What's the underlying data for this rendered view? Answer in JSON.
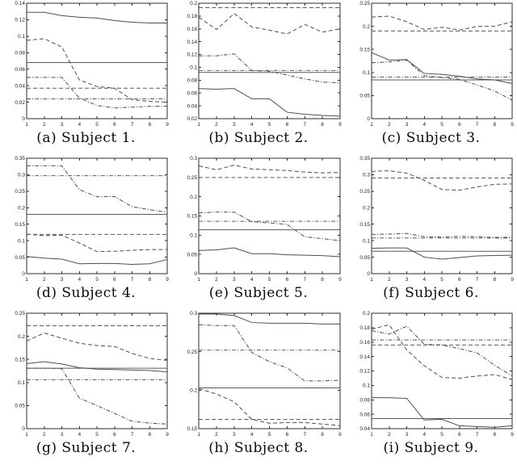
{
  "figure": {
    "background": "#ffffff",
    "line_color": "#4d4d4d",
    "axis_color": "#2b2b2b"
  },
  "chart_data": [
    {
      "type": "line",
      "caption": "(a) Subject 1.",
      "xlabel": "",
      "ylabel": "",
      "x": [
        1,
        2,
        3,
        4,
        5,
        6,
        7,
        8,
        9
      ],
      "xtick_labels": [
        "1",
        "2",
        "3",
        "4",
        "5",
        "6",
        "7",
        "8",
        "9"
      ],
      "ylim": [
        0,
        0.14
      ],
      "ytick_labels": [
        "0",
        "0.02",
        "0.04",
        "0.06",
        "0.08",
        "0.1",
        "0.12",
        "0.14"
      ],
      "series": [
        {
          "style": "solid",
          "values": [
            0.129,
            0.129,
            0.125,
            0.123,
            0.122,
            0.119,
            0.117,
            0.116,
            0.116
          ]
        },
        {
          "style": "dashed",
          "values": [
            0.095,
            0.097,
            0.087,
            0.047,
            0.039,
            0.037,
            0.023,
            0.021,
            0.02
          ]
        },
        {
          "style": "dash-dot",
          "values": [
            0.05,
            0.05,
            0.05,
            0.025,
            0.016,
            0.013,
            0.014,
            0.015,
            0.015
          ]
        }
      ],
      "ref_lines": [
        {
          "style": "solid",
          "value": 0.068
        },
        {
          "style": "dashed",
          "value": 0.037
        },
        {
          "style": "dash-dot",
          "value": 0.024
        }
      ]
    },
    {
      "type": "line",
      "caption": "(b) Subject 2.",
      "xlabel": "",
      "ylabel": "",
      "x": [
        1,
        2,
        3,
        4,
        5,
        6,
        7,
        8,
        9
      ],
      "xtick_labels": [
        "1",
        "2",
        "3",
        "4",
        "5",
        "6",
        "7",
        "8",
        "9"
      ],
      "ylim": [
        0.02,
        0.2
      ],
      "ytick_labels": [
        "0.02",
        "0.04",
        "0.06",
        "0.08",
        "0.1",
        "0.12",
        "0.14",
        "0.16",
        "0.18",
        "0.2"
      ],
      "series": [
        {
          "style": "solid",
          "values": [
            0.067,
            0.066,
            0.067,
            0.051,
            0.051,
            0.03,
            0.027,
            0.025,
            0.024
          ]
        },
        {
          "style": "dashed",
          "values": [
            0.178,
            0.159,
            0.184,
            0.163,
            0.158,
            0.152,
            0.167,
            0.155,
            0.16
          ]
        },
        {
          "style": "dash-dot",
          "values": [
            0.118,
            0.118,
            0.121,
            0.095,
            0.094,
            0.088,
            0.082,
            0.077,
            0.076
          ]
        }
      ],
      "ref_lines": [
        {
          "style": "solid",
          "value": 0.092
        },
        {
          "style": "dashed",
          "value": 0.193
        },
        {
          "style": "dash-dot",
          "value": 0.095
        }
      ]
    },
    {
      "type": "line",
      "caption": "(c) Subject 3.",
      "xlabel": "",
      "ylabel": "",
      "x": [
        1,
        2,
        3,
        4,
        5,
        6,
        7,
        8,
        9
      ],
      "xtick_labels": [
        "1",
        "2",
        "3",
        "4",
        "5",
        "6",
        "7",
        "8",
        "9"
      ],
      "ylim": [
        0,
        0.25
      ],
      "ytick_labels": [
        "0",
        "0.05",
        "0.1",
        "0.15",
        "0.2",
        "0.25"
      ],
      "series": [
        {
          "style": "solid",
          "values": [
            0.143,
            0.127,
            0.128,
            0.098,
            0.096,
            0.092,
            0.086,
            0.084,
            0.076
          ]
        },
        {
          "style": "dashed",
          "values": [
            0.22,
            0.222,
            0.21,
            0.193,
            0.198,
            0.192,
            0.2,
            0.2,
            0.21
          ]
        },
        {
          "style": "dash-dot",
          "values": [
            0.121,
            0.123,
            0.127,
            0.093,
            0.089,
            0.085,
            0.073,
            0.06,
            0.04
          ]
        }
      ],
      "ref_lines": [
        {
          "style": "solid",
          "value": 0.084
        },
        {
          "style": "dashed",
          "value": 0.19
        },
        {
          "style": "dash-dot",
          "value": 0.09
        }
      ]
    },
    {
      "type": "line",
      "caption": "(d) Subject 4.",
      "xlabel": "",
      "ylabel": "",
      "x": [
        1,
        2,
        3,
        4,
        5,
        6,
        7,
        8,
        9
      ],
      "xtick_labels": [
        "1",
        "2",
        "3",
        "4",
        "5",
        "6",
        "7",
        "8",
        "9"
      ],
      "ylim": [
        0,
        0.35
      ],
      "ytick_labels": [
        "0",
        "0.05",
        "0.1",
        "0.15",
        "0.2",
        "0.25",
        "0.3",
        "0.35"
      ],
      "series": [
        {
          "style": "solid",
          "values": [
            0.052,
            0.047,
            0.044,
            0.03,
            0.031,
            0.031,
            0.028,
            0.03,
            0.043
          ]
        },
        {
          "style": "dashed",
          "values": [
            0.12,
            0.115,
            0.117,
            0.093,
            0.067,
            0.068,
            0.071,
            0.073,
            0.073
          ]
        },
        {
          "style": "dash-dot",
          "values": [
            0.327,
            0.327,
            0.327,
            0.255,
            0.233,
            0.234,
            0.203,
            0.194,
            0.186
          ]
        }
      ],
      "ref_lines": [
        {
          "style": "solid",
          "value": 0.18
        },
        {
          "style": "dashed",
          "value": 0.119
        },
        {
          "style": "dash-dot",
          "value": 0.297
        }
      ]
    },
    {
      "type": "line",
      "caption": "(e) Subject 5.",
      "xlabel": "",
      "ylabel": "",
      "x": [
        1,
        2,
        3,
        4,
        5,
        6,
        7,
        8,
        9
      ],
      "xtick_labels": [
        "1",
        "2",
        "3",
        "4",
        "5",
        "6",
        "7",
        "8",
        "9"
      ],
      "ylim": [
        0,
        0.3
      ],
      "ytick_labels": [
        "0",
        "0.05",
        "0.1",
        "0.15",
        "0.2",
        "0.25",
        "0.3"
      ],
      "series": [
        {
          "style": "solid",
          "values": [
            0.06,
            0.062,
            0.067,
            0.052,
            0.052,
            0.049,
            0.048,
            0.047,
            0.044
          ]
        },
        {
          "style": "dashed",
          "values": [
            0.28,
            0.27,
            0.282,
            0.272,
            0.27,
            0.268,
            0.264,
            0.262,
            0.263
          ]
        },
        {
          "style": "dash-dot",
          "values": [
            0.158,
            0.16,
            0.16,
            0.135,
            0.132,
            0.128,
            0.096,
            0.091,
            0.086
          ]
        }
      ],
      "ref_lines": [
        {
          "style": "solid",
          "value": 0.114
        },
        {
          "style": "dashed",
          "value": 0.25
        },
        {
          "style": "dash-dot",
          "value": 0.136
        }
      ]
    },
    {
      "type": "line",
      "caption": "(f) Subject 6.",
      "xlabel": "",
      "ylabel": "",
      "x": [
        1,
        2,
        3,
        4,
        5,
        6,
        7,
        8,
        9
      ],
      "xtick_labels": [
        "1",
        "2",
        "3",
        "4",
        "5",
        "6",
        "7",
        "8",
        "9"
      ],
      "ylim": [
        0,
        0.35
      ],
      "ytick_labels": [
        "0",
        "0.05",
        "0.1",
        "0.15",
        "0.2",
        "0.25",
        "0.3",
        "0.35"
      ],
      "series": [
        {
          "style": "solid",
          "values": [
            0.077,
            0.078,
            0.078,
            0.05,
            0.044,
            0.049,
            0.054,
            0.055,
            0.056
          ]
        },
        {
          "style": "dashed",
          "values": [
            0.31,
            0.312,
            0.305,
            0.283,
            0.255,
            0.253,
            0.263,
            0.271,
            0.272
          ]
        },
        {
          "style": "dash-dot",
          "values": [
            0.119,
            0.12,
            0.122,
            0.112,
            0.111,
            0.113,
            0.112,
            0.11,
            0.11
          ]
        }
      ],
      "ref_lines": [
        {
          "style": "solid",
          "value": 0.068
        },
        {
          "style": "dashed",
          "value": 0.29
        },
        {
          "style": "dash-dot",
          "value": 0.108
        }
      ]
    },
    {
      "type": "line",
      "caption": "(g) Subject 7.",
      "xlabel": "",
      "ylabel": "",
      "x": [
        1,
        2,
        3,
        4,
        5,
        6,
        7,
        8,
        9
      ],
      "xtick_labels": [
        "1",
        "2",
        "3",
        "4",
        "5",
        "6",
        "7",
        "8",
        "9"
      ],
      "ylim": [
        0,
        0.25
      ],
      "ytick_labels": [
        "0",
        "0.05",
        "0.1",
        "0.15",
        "0.2",
        "0.25"
      ],
      "series": [
        {
          "style": "solid",
          "values": [
            0.141,
            0.145,
            0.14,
            0.132,
            0.129,
            0.128,
            0.127,
            0.126,
            0.123
          ]
        },
        {
          "style": "dashed",
          "values": [
            0.19,
            0.207,
            0.196,
            0.185,
            0.18,
            0.178,
            0.163,
            0.152,
            0.148
          ]
        },
        {
          "style": "dash-dot",
          "values": [
            0.131,
            0.131,
            0.13,
            0.066,
            0.05,
            0.033,
            0.016,
            0.012,
            0.01
          ]
        }
      ],
      "ref_lines": [
        {
          "style": "solid",
          "value": 0.131
        },
        {
          "style": "dashed",
          "value": 0.223
        },
        {
          "style": "dash-dot",
          "value": 0.106
        }
      ]
    },
    {
      "type": "line",
      "caption": "(h) Subject 8.",
      "xlabel": "",
      "ylabel": "",
      "x": [
        1,
        2,
        3,
        4,
        5,
        6,
        7,
        8,
        9
      ],
      "xtick_labels": [
        "1",
        "2",
        "3",
        "4",
        "5",
        "6",
        "7",
        "8",
        "9"
      ],
      "ylim": [
        0.15,
        0.3
      ],
      "ytick_labels": [
        "0.15",
        "0.2",
        "0.25",
        "0.3"
      ],
      "series": [
        {
          "style": "solid",
          "values": [
            0.299,
            0.299,
            0.297,
            0.288,
            0.287,
            0.287,
            0.287,
            0.286,
            0.286
          ]
        },
        {
          "style": "dashed",
          "values": [
            0.202,
            0.195,
            0.185,
            0.162,
            0.157,
            0.158,
            0.158,
            0.156,
            0.154
          ]
        },
        {
          "style": "dash-dot",
          "values": [
            0.285,
            0.284,
            0.284,
            0.249,
            0.237,
            0.229,
            0.212,
            0.212,
            0.213
          ]
        }
      ],
      "ref_lines": [
        {
          "style": "solid",
          "value": 0.203
        },
        {
          "style": "dashed",
          "value": 0.162
        },
        {
          "style": "dash-dot",
          "value": 0.252
        }
      ]
    },
    {
      "type": "line",
      "caption": "(i) Subject 9.",
      "xlabel": "",
      "ylabel": "",
      "x": [
        1,
        2,
        3,
        4,
        5,
        6,
        7,
        8,
        9
      ],
      "xtick_labels": [
        "1",
        "2",
        "3",
        "4",
        "5",
        "6",
        "7",
        "8",
        "9"
      ],
      "ylim": [
        0.04,
        0.2
      ],
      "ytick_labels": [
        "0.04",
        "0.06",
        "0.08",
        "0.1",
        "0.12",
        "0.14",
        "0.16",
        "0.18",
        "0.2"
      ],
      "series": [
        {
          "style": "solid",
          "values": [
            0.083,
            0.083,
            0.082,
            0.052,
            0.053,
            0.044,
            0.043,
            0.042,
            0.044
          ]
        },
        {
          "style": "dashed",
          "values": [
            0.178,
            0.184,
            0.149,
            0.127,
            0.111,
            0.11,
            0.113,
            0.115,
            0.108
          ]
        },
        {
          "style": "dash-dot",
          "values": [
            0.176,
            0.171,
            0.182,
            0.157,
            0.156,
            0.151,
            0.145,
            0.128,
            0.113
          ]
        }
      ],
      "ref_lines": [
        {
          "style": "solid",
          "value": 0.054
        },
        {
          "style": "dashed",
          "value": 0.156
        },
        {
          "style": "dash-dot",
          "value": 0.163
        }
      ]
    }
  ]
}
